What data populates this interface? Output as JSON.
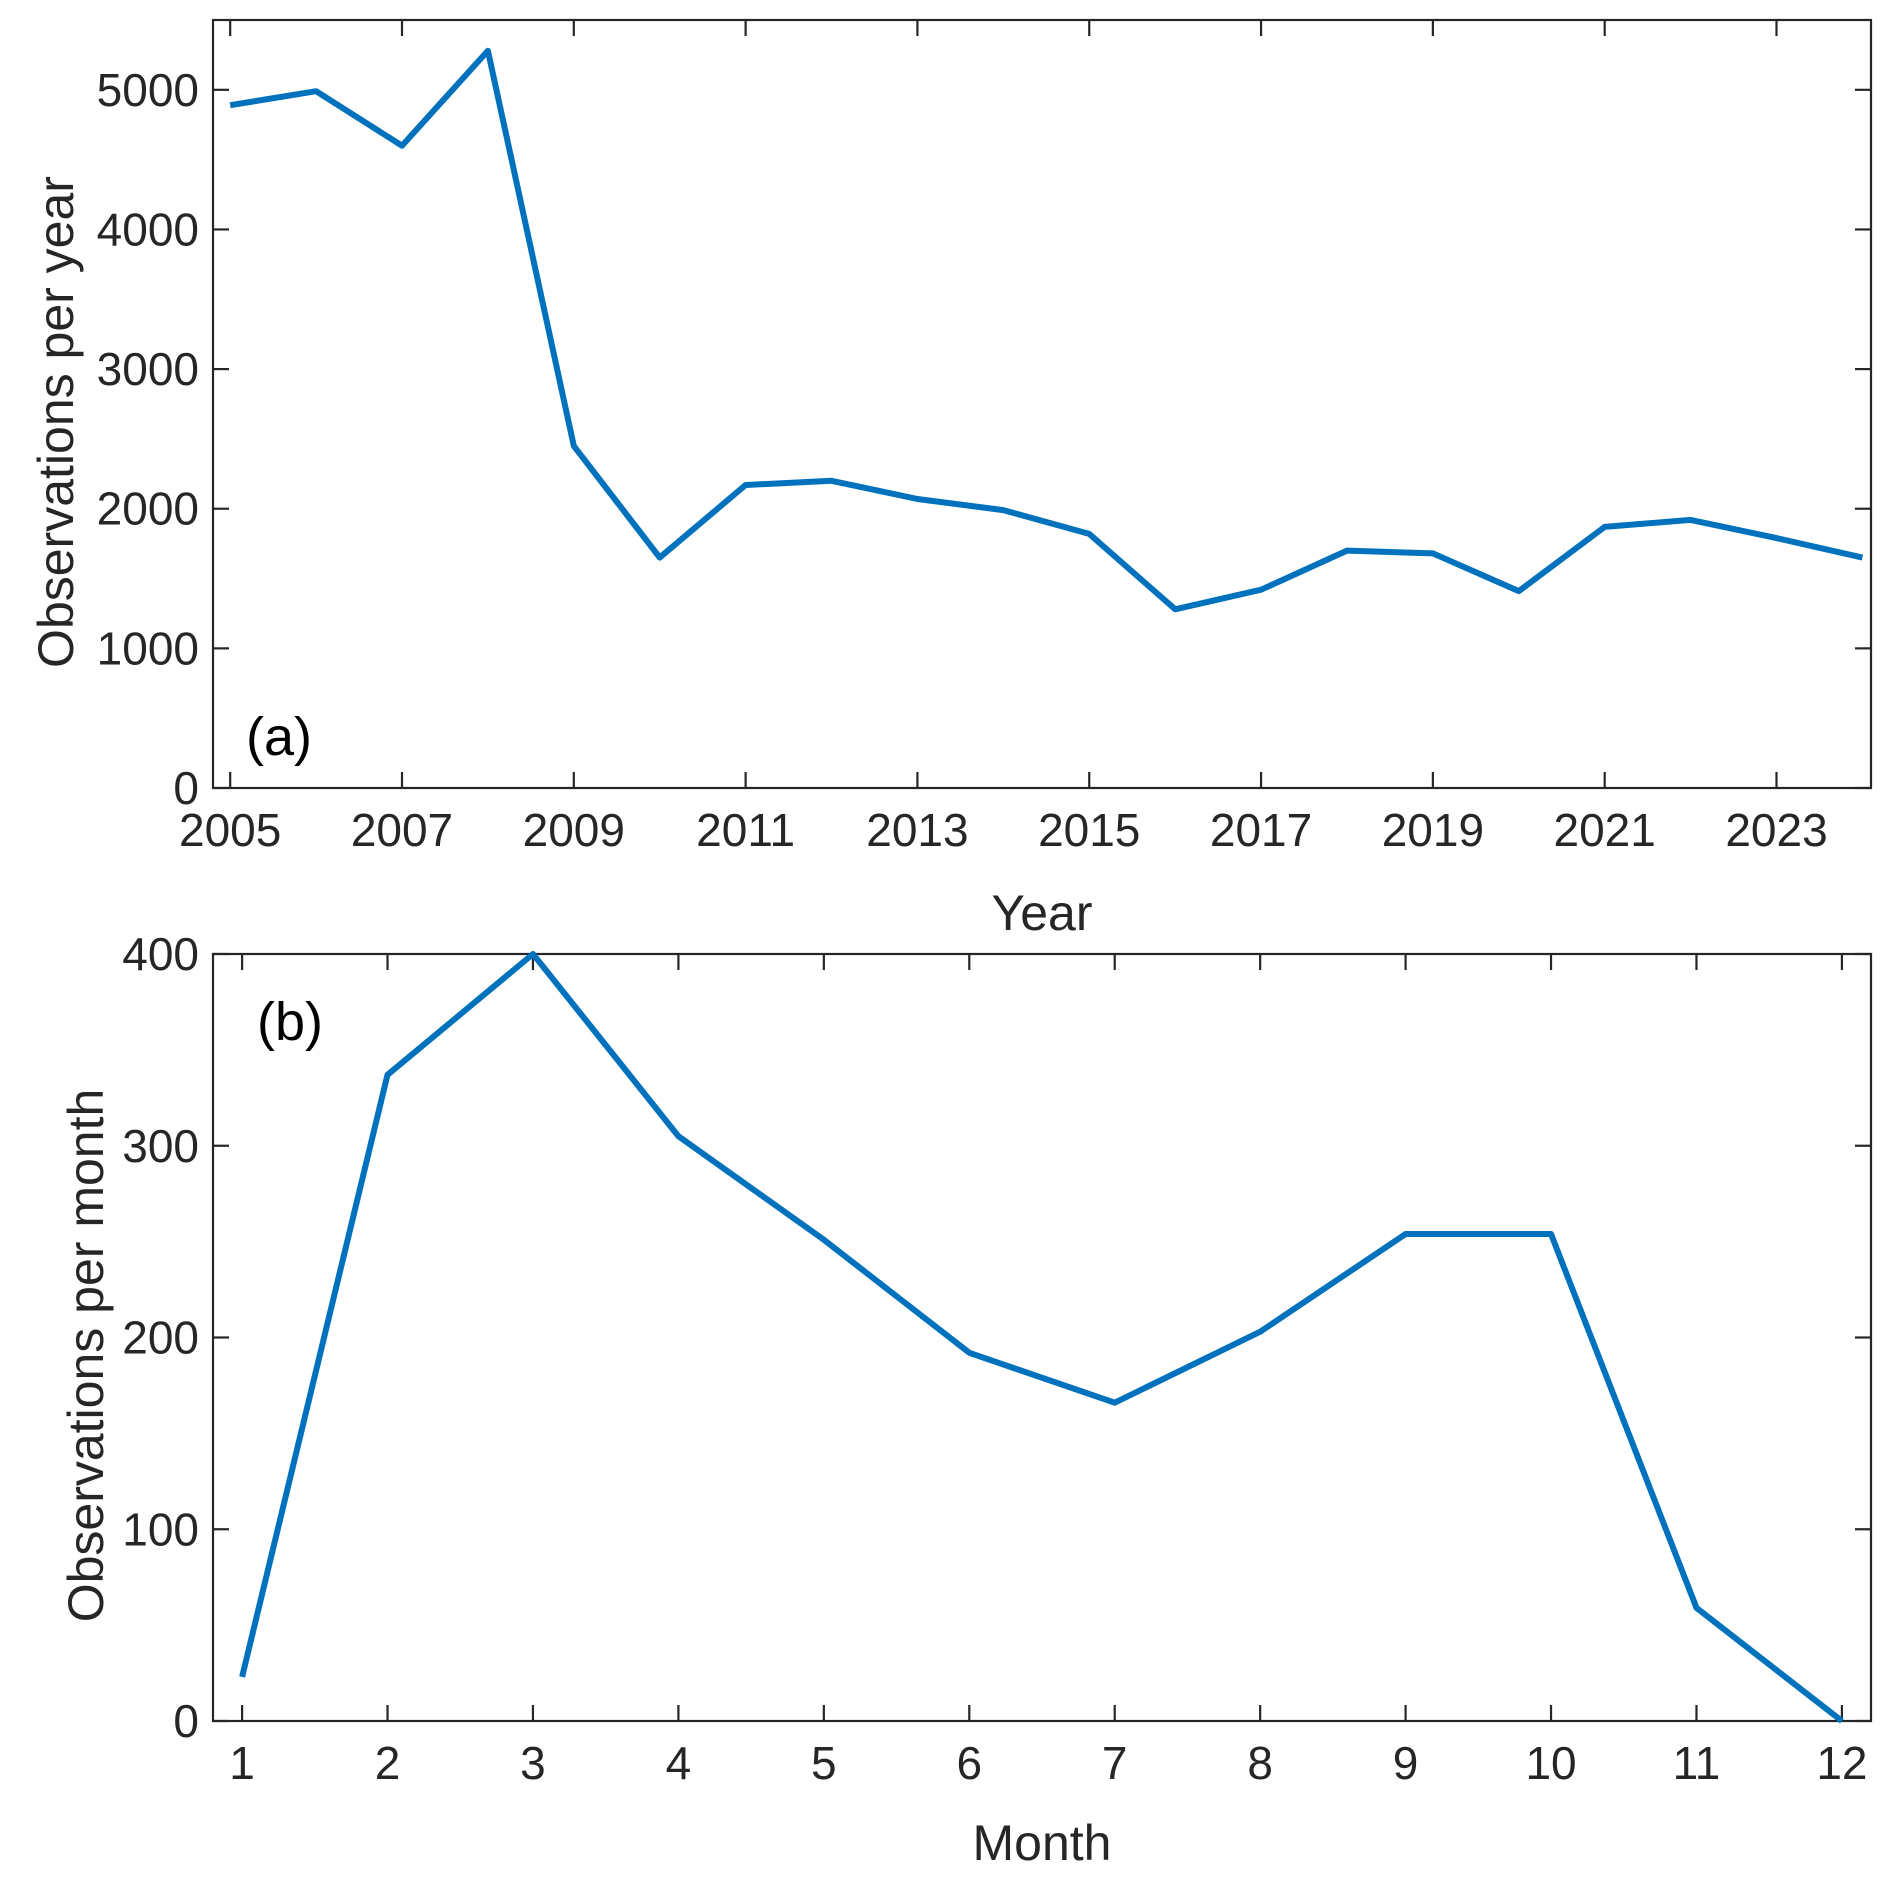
{
  "chart_data": [
    {
      "type": "line",
      "panel_label": "(a)",
      "xlabel": "Year",
      "ylabel": "Observations per year",
      "xlim": [
        2004.8,
        2024.1
      ],
      "ylim": [
        0,
        5500
      ],
      "xticks": [
        2005,
        2007,
        2009,
        2011,
        2013,
        2015,
        2017,
        2019,
        2021,
        2023
      ],
      "xtick_labels": [
        "2005",
        "2007",
        "2009",
        "2011",
        "2013",
        "2015",
        "2017",
        "2019",
        "2021",
        "2023"
      ],
      "yticks": [
        0,
        1000,
        2000,
        3000,
        4000,
        5000
      ],
      "ytick_labels": [
        "0",
        "1000",
        "2000",
        "3000",
        "4000",
        "5000"
      ],
      "grid": false,
      "series": [
        {
          "color": "#0072BD",
          "x": [
            2005,
            2006,
            2007,
            2008,
            2009,
            2010,
            2011,
            2012,
            2013,
            2014,
            2015,
            2016,
            2017,
            2018,
            2019,
            2020,
            2021,
            2022,
            2023,
            2024
          ],
          "values": [
            4890,
            4990,
            4600,
            5280,
            2450,
            1650,
            2170,
            2200,
            2070,
            1990,
            1820,
            1280,
            1420,
            1700,
            1680,
            1410,
            1870,
            1920,
            1790,
            1650
          ]
        }
      ]
    },
    {
      "type": "line",
      "panel_label": "(b)",
      "xlabel": "Month",
      "ylabel": "Observations per month",
      "xlim": [
        0.8,
        12.2
      ],
      "ylim": [
        0,
        400
      ],
      "xticks": [
        1,
        2,
        3,
        4,
        5,
        6,
        7,
        8,
        9,
        10,
        11,
        12
      ],
      "xtick_labels": [
        "1",
        "2",
        "3",
        "4",
        "5",
        "6",
        "7",
        "8",
        "9",
        "10",
        "11",
        "12"
      ],
      "yticks": [
        0,
        100,
        200,
        300,
        400
      ],
      "ytick_labels": [
        "0",
        "100",
        "200",
        "300",
        "400"
      ],
      "grid": false,
      "series": [
        {
          "color": "#0072BD",
          "x": [
            1,
            2,
            3,
            4,
            5,
            6,
            7,
            8,
            9,
            10,
            11,
            12
          ],
          "values": [
            23,
            337,
            400,
            305,
            251,
            192,
            166,
            203,
            254,
            254,
            59,
            0
          ]
        }
      ]
    }
  ]
}
